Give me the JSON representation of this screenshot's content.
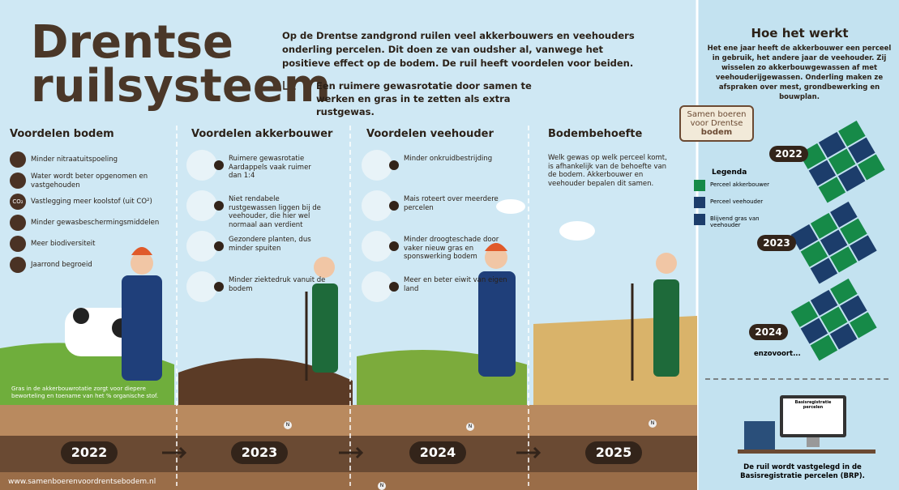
{
  "header": {
    "title_lines": [
      "Drentse",
      "ruilsysteem"
    ],
    "intro": "Op de Drentse zandgrond ruilen veel akkerbouwers en veehouders onderling percelen. Dit doen ze van oudsher al, vanwege het positieve effect op de bodem. De ruil heeft voordelen voor beiden.",
    "highlight": "Een ruimere gewasrotatie door samen te werken en gras in te zetten als extra rustgewas."
  },
  "columns": [
    {
      "heading": "Voordelen bodem",
      "year": "2022",
      "icons": [
        "",
        "",
        "CO₂",
        "",
        "",
        ""
      ],
      "items": [
        "Minder nitraatuitspoeling",
        "Water wordt beter opgenomen en vastgehouden",
        "Vastlegging meer koolstof (uit CO²)",
        "Minder gewasbeschermingsmiddelen",
        "Meer biodiversiteit",
        "Jaarrond begroeid"
      ],
      "note": "Gras in de akkerbouwrotatie zorgt voor diepere beworteling en toename van het % organische stof."
    },
    {
      "heading": "Voordelen akkerbouwer",
      "year": "2023",
      "items": [
        "Ruimere gewasrotatie Aardappels vaak ruimer dan 1:4",
        "Niet rendabele rustgewassen liggen bij de veehouder, die hier wel normaal aan verdient",
        "Gezondere planten, dus minder spuiten",
        "Minder ziektedruk vanuit de bodem"
      ]
    },
    {
      "heading": "Voordelen veehouder",
      "year": "2024",
      "items": [
        "Minder onkruidbestrijding",
        "Mais roteert over meerdere percelen",
        "Minder droogteschade door vaker nieuw gras en sponswerking bodem",
        "Meer en beter eiwit van eigen land"
      ]
    },
    {
      "heading": "Bodembehoefte",
      "year": "2025",
      "text": "Welk gewas op welk perceel komt, is afhankelijk van de behoefte van de bodem. Akkerbouwer en veehouder bepalen dit samen."
    }
  ],
  "soil_label": "N",
  "footer": {
    "url": "www.samenboerenvoordrentsebodem.nl"
  },
  "sidebar": {
    "title": "Hoe het werkt",
    "text": "Het ene jaar heeft de akkerbouwer een perceel in gebruik, het andere jaar de veehouder. Zij wisselen zo akkerbouwgewassen af met veehouderijgewassen. Onderling maken ze afspraken over mest, grondbewerking en bouwplan.",
    "logo_lines": [
      "Samen boeren",
      "voor Drentse",
      "bodem"
    ],
    "legend_title": "Legenda",
    "legend": [
      {
        "label": "Perceel akkerbouwer",
        "color": "#168a48"
      },
      {
        "label": "Perceel veehouder",
        "color": "#1c3d6b"
      },
      {
        "label": "Blijvend gras van veehouder",
        "color": "#1c3d6b"
      }
    ],
    "years": [
      "2022",
      "2023",
      "2024"
    ],
    "more": "enzovoort...",
    "brp_screen": "Basisregistratie percelen",
    "brp_text": "De ruil wordt vastgelegd in de Basisregistratie percelen (BRP)."
  }
}
